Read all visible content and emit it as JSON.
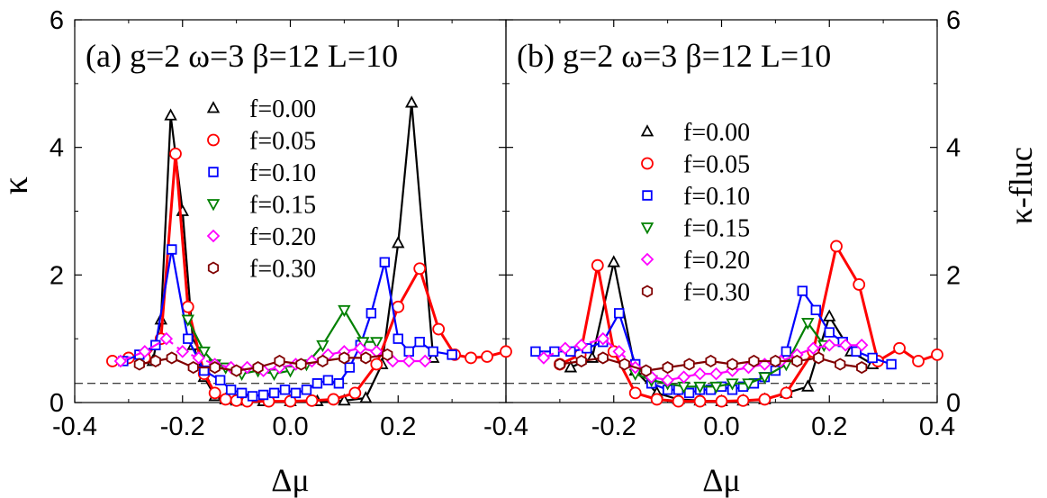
{
  "chart_data": [
    {
      "type": "line",
      "panel": "a",
      "title": "(a) g=2 ω=3 β=12 L=10",
      "xlabel": "Δμ",
      "ylabel": "κ",
      "xlim": [
        -0.4,
        0.4
      ],
      "ylim": [
        0,
        6
      ],
      "xticks": [
        "-0.4",
        "-0.2",
        "0.0",
        "0.2"
      ],
      "yticks": [
        "0",
        "2",
        "4",
        "6"
      ],
      "reference_line_y": 0.3,
      "legend_position": "upper-right",
      "series": [
        {
          "name": "f=0.00",
          "color": "#000000",
          "marker": "triangle-up",
          "dashed": false,
          "x": [
            -0.255,
            -0.24,
            -0.222,
            -0.2,
            -0.18,
            -0.16,
            -0.14,
            -0.12,
            -0.1,
            -0.05,
            0.0,
            0.05,
            0.1,
            0.14,
            0.17,
            0.2,
            0.225,
            0.265
          ],
          "y": [
            0.65,
            1.3,
            4.5,
            3.0,
            0.9,
            0.4,
            0.1,
            0.05,
            0.03,
            0.02,
            0.02,
            0.02,
            0.03,
            0.07,
            0.6,
            2.5,
            4.7,
            0.7
          ]
        },
        {
          "name": "f=0.05",
          "color": "#ff0000",
          "marker": "circle",
          "dashed": false,
          "x": [
            -0.33,
            -0.3,
            -0.27,
            -0.24,
            -0.213,
            -0.19,
            -0.16,
            -0.14,
            -0.12,
            -0.1,
            -0.08,
            -0.04,
            0.0,
            0.04,
            0.08,
            0.12,
            0.16,
            0.2,
            0.24,
            0.275,
            0.305,
            0.335,
            0.365,
            0.4
          ],
          "y": [
            0.65,
            0.7,
            0.7,
            1.0,
            3.9,
            1.5,
            0.45,
            0.15,
            0.05,
            0.03,
            0.02,
            0.02,
            0.02,
            0.03,
            0.05,
            0.15,
            0.6,
            1.5,
            2.1,
            1.15,
            0.75,
            0.7,
            0.72,
            0.8
          ]
        },
        {
          "name": "f=0.10",
          "color": "#0000ff",
          "marker": "square",
          "dashed": false,
          "x": [
            -0.31,
            -0.28,
            -0.25,
            -0.22,
            -0.19,
            -0.16,
            -0.13,
            -0.11,
            -0.09,
            -0.07,
            -0.05,
            -0.03,
            -0.01,
            0.01,
            0.03,
            0.05,
            0.07,
            0.09,
            0.11,
            0.13,
            0.15,
            0.175,
            0.2,
            0.22,
            0.24,
            0.265,
            0.3
          ],
          "y": [
            0.65,
            0.75,
            0.9,
            2.4,
            1.0,
            0.5,
            0.35,
            0.2,
            0.15,
            0.1,
            0.12,
            0.15,
            0.2,
            0.15,
            0.2,
            0.3,
            0.35,
            0.3,
            0.55,
            0.9,
            1.4,
            2.2,
            1.0,
            0.8,
            0.95,
            0.8,
            0.75
          ]
        },
        {
          "name": "f=0.15",
          "color": "#008000",
          "marker": "triangle-down",
          "dashed": false,
          "x": [
            -0.19,
            -0.16,
            -0.14,
            -0.12,
            -0.09,
            -0.06,
            -0.03,
            0.0,
            0.03,
            0.06,
            0.1,
            0.135,
            0.16
          ],
          "y": [
            1.3,
            0.8,
            0.6,
            0.55,
            0.45,
            0.5,
            0.45,
            0.5,
            0.6,
            0.9,
            1.45,
            0.95,
            0.95
          ]
        },
        {
          "name": "f=0.20",
          "color": "#ff00ff",
          "marker": "diamond",
          "dashed": true,
          "x": [
            -0.315,
            -0.27,
            -0.23,
            -0.2,
            -0.17,
            -0.14,
            -0.11,
            -0.08,
            -0.05,
            -0.02,
            0.01,
            0.04,
            0.07,
            0.1,
            0.13,
            0.16,
            0.19,
            0.22,
            0.25
          ],
          "y": [
            0.65,
            0.8,
            1.0,
            0.8,
            0.7,
            0.6,
            0.55,
            0.55,
            0.5,
            0.55,
            0.6,
            0.65,
            0.75,
            0.8,
            0.85,
            0.8,
            0.65,
            0.65,
            0.65
          ]
        },
        {
          "name": "f=0.30",
          "color": "#800000",
          "marker": "hexagon",
          "dashed": false,
          "x": [
            -0.28,
            -0.25,
            -0.22,
            -0.18,
            -0.14,
            -0.1,
            -0.06,
            -0.02,
            0.02,
            0.06,
            0.1,
            0.14,
            0.18
          ],
          "y": [
            0.6,
            0.65,
            0.7,
            0.55,
            0.55,
            0.5,
            0.55,
            0.65,
            0.6,
            0.65,
            0.7,
            0.7,
            0.75
          ]
        }
      ]
    },
    {
      "type": "line",
      "panel": "b",
      "title": "(b) g=2 ω=3 β=12 L=10",
      "xlabel": "Δμ",
      "ylabel": "κ-fluc",
      "xlim": [
        -0.4,
        0.4
      ],
      "ylim": [
        0,
        6
      ],
      "xticks": [
        "-0.4",
        "-0.2",
        "0.0",
        "0.2",
        "0.4"
      ],
      "yticks": [
        "0",
        "2",
        "4",
        "6"
      ],
      "reference_line_y": 0.3,
      "legend_position": "upper-right",
      "series": [
        {
          "name": "f=0.00",
          "color": "#000000",
          "marker": "triangle-up",
          "dashed": false,
          "x": [
            -0.28,
            -0.24,
            -0.2,
            -0.16,
            -0.12,
            -0.08,
            -0.04,
            0.0,
            0.04,
            0.08,
            0.12,
            0.16,
            0.2,
            0.24,
            0.28
          ],
          "y": [
            0.55,
            0.7,
            2.2,
            0.5,
            0.15,
            0.05,
            0.03,
            0.02,
            0.03,
            0.05,
            0.15,
            0.25,
            1.35,
            0.8,
            0.6
          ]
        },
        {
          "name": "f=0.05",
          "color": "#ff0000",
          "marker": "circle",
          "dashed": false,
          "x": [
            -0.3,
            -0.262,
            -0.23,
            -0.2,
            -0.16,
            -0.12,
            -0.08,
            -0.04,
            0.0,
            0.04,
            0.08,
            0.12,
            0.17,
            0.213,
            0.255,
            0.29,
            0.33,
            0.365,
            0.4
          ],
          "y": [
            0.6,
            0.75,
            2.15,
            0.8,
            0.15,
            0.05,
            0.02,
            0.02,
            0.02,
            0.03,
            0.05,
            0.15,
            0.8,
            2.45,
            1.85,
            0.65,
            0.85,
            0.65,
            0.75
          ]
        },
        {
          "name": "f=0.10",
          "color": "#0000ff",
          "marker": "square",
          "dashed": false,
          "x": [
            -0.345,
            -0.31,
            -0.28,
            -0.25,
            -0.22,
            -0.19,
            -0.16,
            -0.13,
            -0.1,
            -0.08,
            -0.06,
            -0.04,
            -0.02,
            0.0,
            0.02,
            0.04,
            0.06,
            0.08,
            0.1,
            0.12,
            0.15,
            0.175,
            0.2,
            0.225,
            0.25,
            0.28,
            0.315
          ],
          "y": [
            0.8,
            0.8,
            0.8,
            0.85,
            0.95,
            1.4,
            0.6,
            0.3,
            0.2,
            0.2,
            0.15,
            0.2,
            0.2,
            0.25,
            0.2,
            0.25,
            0.3,
            0.4,
            0.5,
            0.8,
            1.75,
            1.45,
            1.1,
            0.95,
            0.8,
            0.7,
            0.6
          ]
        },
        {
          "name": "f=0.15",
          "color": "#008000",
          "marker": "triangle-down",
          "dashed": false,
          "x": [
            -0.16,
            -0.13,
            -0.1,
            -0.07,
            -0.04,
            -0.01,
            0.02,
            0.05,
            0.08,
            0.12,
            0.16,
            0.19
          ],
          "y": [
            0.45,
            0.35,
            0.3,
            0.25,
            0.25,
            0.25,
            0.3,
            0.3,
            0.4,
            0.6,
            1.25,
            0.9
          ]
        },
        {
          "name": "f=0.20",
          "color": "#ff00ff",
          "marker": "diamond",
          "dashed": true,
          "x": [
            -0.33,
            -0.29,
            -0.26,
            -0.22,
            -0.19,
            -0.16,
            -0.13,
            -0.1,
            -0.07,
            -0.04,
            -0.01,
            0.02,
            0.05,
            0.08,
            0.11,
            0.14,
            0.17,
            0.2,
            0.23,
            0.26
          ],
          "y": [
            0.7,
            0.85,
            0.9,
            1.0,
            0.8,
            0.55,
            0.4,
            0.35,
            0.4,
            0.45,
            0.45,
            0.5,
            0.55,
            0.6,
            0.65,
            0.75,
            0.85,
            0.9,
            0.9,
            0.9
          ]
        },
        {
          "name": "f=0.30",
          "color": "#800000",
          "marker": "hexagon",
          "dashed": false,
          "x": [
            -0.3,
            -0.26,
            -0.22,
            -0.18,
            -0.14,
            -0.1,
            -0.06,
            -0.02,
            0.02,
            0.06,
            0.1,
            0.14,
            0.18,
            0.22,
            0.26
          ],
          "y": [
            0.6,
            0.65,
            0.7,
            0.6,
            0.5,
            0.55,
            0.6,
            0.65,
            0.6,
            0.65,
            0.65,
            0.65,
            0.7,
            0.6,
            0.55
          ]
        }
      ]
    }
  ]
}
